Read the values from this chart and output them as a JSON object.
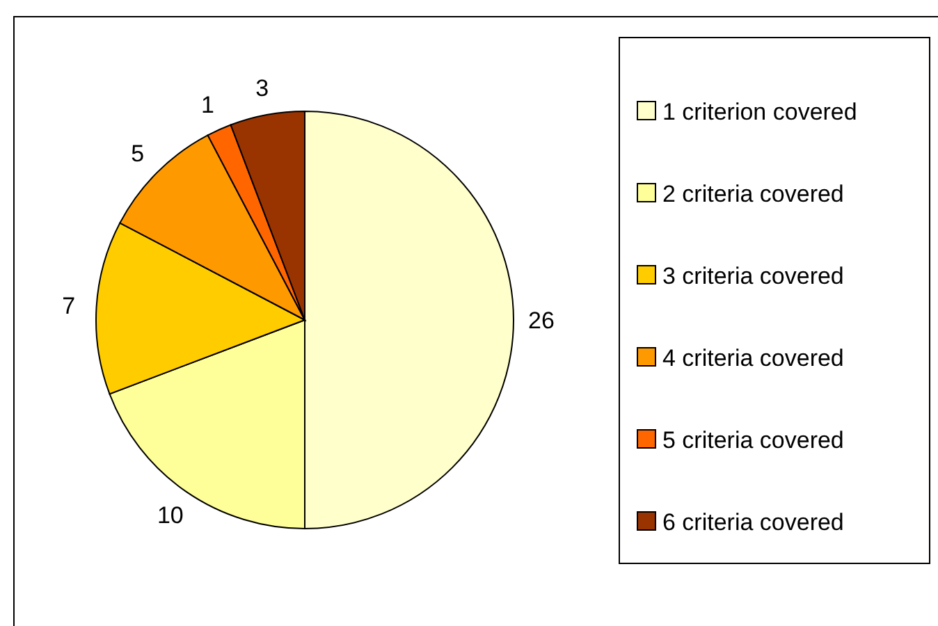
{
  "chart_data": {
    "type": "pie",
    "categories": [
      "1 criterion covered",
      "2 criteria covered",
      "3 criteria covered",
      "4 criteria covered",
      "5 criteria covered",
      "6 criteria covered"
    ],
    "values": [
      26,
      10,
      7,
      5,
      1,
      3
    ],
    "colors": [
      "#ffffcc",
      "#ffff99",
      "#ffcc00",
      "#ff9900",
      "#ff6600",
      "#993300"
    ],
    "data_labels": true,
    "legend": "right"
  }
}
